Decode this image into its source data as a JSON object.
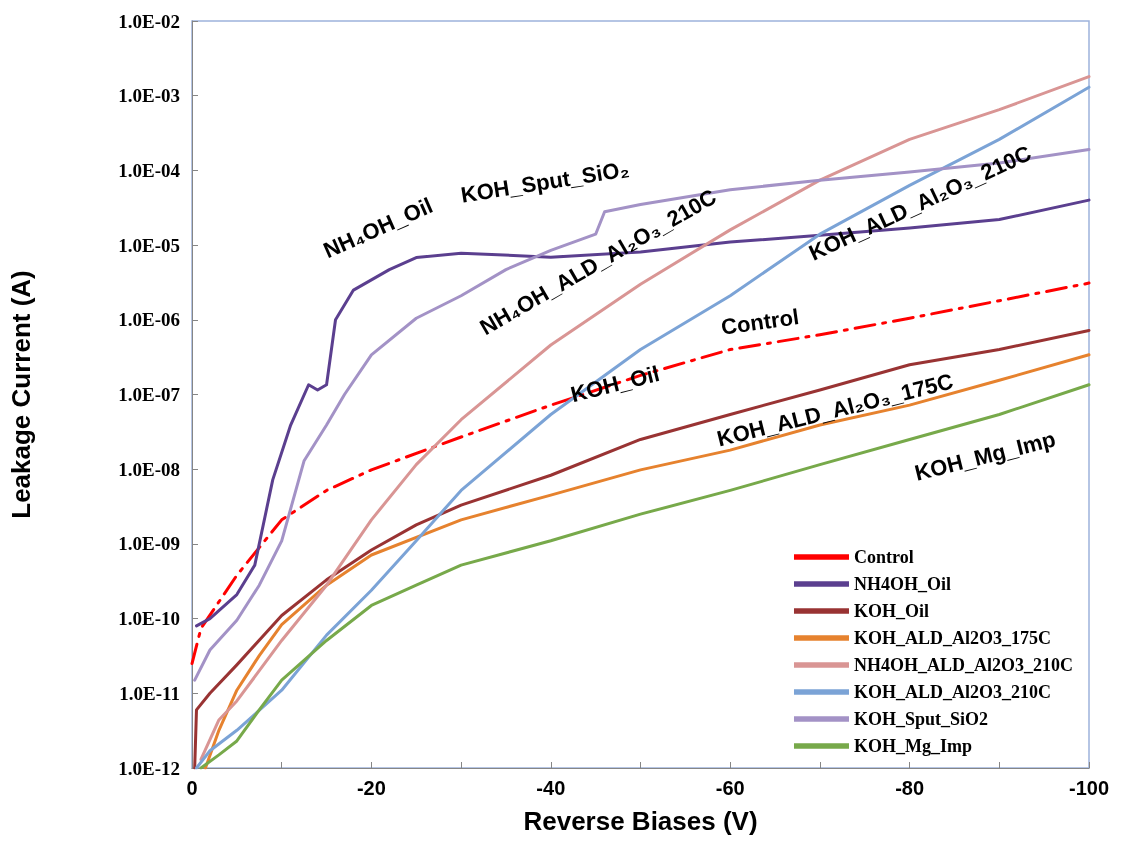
{
  "chart_data": {
    "type": "line",
    "xlabel": "Reverse Biases (V)",
    "ylabel": "Leakage Current (A)",
    "log": "y",
    "grid": false,
    "legend": "bottom right",
    "marker": "none",
    "xlim": [
      0,
      -100
    ],
    "xticks": [
      0,
      {
        "value": -10,
        "label": null
      },
      -20,
      {
        "value": -30,
        "label": null
      },
      -40,
      {
        "value": -50,
        "label": null
      },
      -60,
      {
        "value": -70,
        "label": null
      },
      -80,
      {
        "value": -90,
        "label": null
      },
      -100
    ],
    "ylim": [
      1e-12,
      0.01
    ],
    "yticks": [
      {
        "value": 1e-12,
        "label": "1.0E-12"
      },
      {
        "value": 1e-11,
        "label": "1.0E-11"
      },
      {
        "value": 1e-10,
        "label": "1.0E-10"
      },
      {
        "value": 1e-09,
        "label": "1.0E-09"
      },
      {
        "value": 1e-08,
        "label": "1.0E-08"
      },
      {
        "value": 1e-07,
        "label": "1.0E-07"
      },
      {
        "value": 1e-06,
        "label": "1.0E-06"
      },
      {
        "value": 1e-05,
        "label": "1.0E-05"
      },
      {
        "value": 0.0001,
        "label": "1.0E-04"
      },
      {
        "value": 0.001,
        "label": "1.0E-03"
      },
      {
        "value": 0.01,
        "label": "1.0E-02"
      }
    ],
    "series": [
      {
        "name": "Control",
        "color": "#ff0000",
        "line_style": "dashed",
        "x": [
          0,
          -1,
          -5,
          -10,
          -15,
          -20,
          -30,
          -40,
          -50,
          -60,
          -70,
          -80,
          -90,
          -100
        ],
        "values": [
          2.5e-11,
          7.4e-11,
          3.8e-10,
          2.1e-09,
          5.2e-09,
          9.8e-09,
          2.7e-08,
          7.2e-08,
          1.8e-07,
          4e-07,
          6.3e-07,
          1.05e-06,
          1.8e-06,
          3.1e-06
        ]
      },
      {
        "name": "NH4OH_Oil",
        "color": "#5b3f8f",
        "x": [
          -0.5,
          -2,
          -5,
          -7,
          -9,
          -11,
          -13,
          -14,
          -15,
          -16,
          -18,
          -22,
          -25,
          -30,
          -40,
          -50,
          -60,
          -70,
          -80,
          -90,
          -100
        ],
        "values": [
          8e-11,
          1e-10,
          2.1e-10,
          5.2e-10,
          7.2e-09,
          3.9e-08,
          1.35e-07,
          1.15e-07,
          1.35e-07,
          1e-06,
          2.5e-06,
          4.7e-06,
          6.8e-06,
          7.8e-06,
          6.9e-06,
          8.1e-06,
          1.1e-05,
          1.35e-05,
          1.7e-05,
          2.2e-05,
          4e-05
        ]
      },
      {
        "name": "KOH_Oil",
        "color": "#993333",
        "x": [
          -0.3,
          -0.5,
          -2,
          -5,
          -10,
          -15,
          -20,
          -25,
          -30,
          -40,
          -50,
          -60,
          -70,
          -80,
          -90,
          -100
        ],
        "values": [
          1e-12,
          6e-12,
          1e-11,
          2.4e-11,
          1.1e-10,
          3.3e-10,
          8.3e-10,
          1.8e-09,
          3.3e-09,
          8.3e-09,
          2.5e-08,
          5.4e-08,
          1.15e-07,
          2.5e-07,
          4e-07,
          7.2e-07
        ]
      },
      {
        "name": "KOH_ALD_Al2O3_175C",
        "color": "#e6822e",
        "x": [
          -1.5,
          -3,
          -5,
          -7.5,
          -10,
          -15,
          -20,
          -30,
          -40,
          -50,
          -60,
          -70,
          -80,
          -90,
          -100
        ],
        "values": [
          1e-12,
          3.2e-12,
          1.1e-11,
          3.2e-11,
          8.3e-11,
          2.8e-10,
          7.1e-10,
          2.1e-09,
          4.5e-09,
          9.8e-09,
          1.8e-08,
          3.9e-08,
          7.2e-08,
          1.55e-07,
          3.4e-07
        ]
      },
      {
        "name": "NH4OH_ALD_Al2O3_210C",
        "color": "#d99594",
        "x": [
          -1,
          -3,
          -5,
          -10,
          -15,
          -20,
          -25,
          -30,
          -40,
          -50,
          -60,
          -70,
          -80,
          -90,
          -100
        ],
        "values": [
          1.3e-12,
          4.4e-12,
          7.9e-12,
          5.1e-11,
          2.8e-10,
          2.1e-09,
          1.15e-08,
          4.6e-08,
          4.6e-07,
          3e-06,
          1.6e-05,
          7.4e-05,
          0.00026,
          0.00065,
          0.0018
        ]
      },
      {
        "name": "KOH_ALD_Al2O3_210C",
        "color": "#7ba3d6",
        "x": [
          -0.5,
          -2,
          -5,
          -10,
          -15,
          -20,
          -25,
          -30,
          -40,
          -50,
          -60,
          -70,
          -80,
          -90,
          -100
        ],
        "values": [
          1e-12,
          1.7e-12,
          3.2e-12,
          1.1e-11,
          6e-11,
          2.4e-10,
          1.1e-09,
          5.2e-09,
          5.4e-08,
          4e-07,
          2.1e-06,
          1.4e-05,
          6.3e-05,
          0.00026,
          0.0013
        ]
      },
      {
        "name": "KOH_Sput_SiO2",
        "color": "#a392c6",
        "x": [
          -0.3,
          -2,
          -5,
          -7.5,
          -10,
          -12.5,
          -15,
          -17,
          -20,
          -25,
          -30,
          -35,
          -40,
          -45,
          -46,
          -50,
          -60,
          -70,
          -80,
          -90,
          -100
        ],
        "values": [
          1.5e-11,
          3.8e-11,
          9.5e-11,
          2.8e-10,
          1.1e-09,
          1.3e-08,
          3.9e-08,
          1e-07,
          3.4e-07,
          1.05e-06,
          2.1e-06,
          4.7e-06,
          8.5e-06,
          1.4e-05,
          2.8e-05,
          3.5e-05,
          5.5e-05,
          7.4e-05,
          9.5e-05,
          0.000126,
          0.00019
        ]
      },
      {
        "name": "KOH_Mg_Imp",
        "color": "#77a94a",
        "x": [
          -1,
          -3,
          -5,
          -7.5,
          -10,
          -15,
          -20,
          -25,
          -30,
          -40,
          -50,
          -60,
          -70,
          -80,
          -90,
          -100
        ],
        "values": [
          1e-12,
          1.5e-12,
          2.3e-12,
          6e-12,
          1.5e-11,
          5.1e-11,
          1.5e-10,
          2.8e-10,
          5.2e-10,
          1.1e-09,
          2.5e-09,
          5.2e-09,
          1.15e-08,
          2.5e-08,
          5.4e-08,
          1.35e-07
        ]
      }
    ],
    "annotations": [
      "NH₄OH_Oil",
      "KOH_Sput_SiO₂",
      "NH₄OH_ALD_Al₂O₃_210C",
      "KOH_ALD_Al₂O₃_210C",
      "Control",
      "KOH_Oil",
      "KOH_ALD_Al₂O₃_175C",
      "KOH_Mg_Imp"
    ]
  }
}
